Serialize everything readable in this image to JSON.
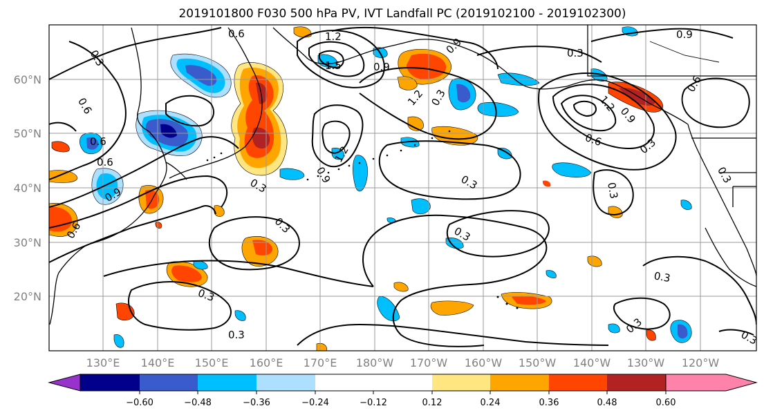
{
  "title": "2019101800 F030 500 hPa PV, IVT Landfall PC (2019102100 - 2019102300)",
  "map": {
    "lat_labels": [
      "60°N",
      "50°N",
      "40°N",
      "30°N",
      "20°N"
    ],
    "lon_labels": [
      "130°E",
      "140°E",
      "150°E",
      "160°E",
      "170°E",
      "180°W",
      "170°W",
      "160°W",
      "150°W",
      "140°W",
      "130°W",
      "120°W"
    ],
    "contour_labels": [
      "0.3",
      "0.6",
      "0.9",
      "1.2",
      "1.5",
      "0.3",
      "0.6",
      "0.9",
      "1.2",
      "0.3",
      "0.6",
      "0.9",
      "0.3",
      "0.3",
      "0.3",
      "0.3",
      "0.6",
      "1.2",
      "0.9",
      "0.6",
      "0.3",
      "0.6",
      "0.9",
      "0.3",
      "1.2",
      "0.9",
      "0.6",
      "0.3"
    ]
  },
  "colorbar": {
    "colors": [
      "#9932CC",
      "#00008B",
      "#3A5BCB",
      "#00BFFF",
      "#ADDFFF",
      "#FFFFFF",
      "#FFFFFF",
      "#FFE680",
      "#FFA500",
      "#FF4500",
      "#B22222",
      "#FF82AB"
    ],
    "ticks": [
      "−0.60",
      "−0.48",
      "−0.36",
      "−0.24",
      "−0.12",
      "0.12",
      "0.24",
      "0.36",
      "0.48",
      "0.60"
    ]
  }
}
